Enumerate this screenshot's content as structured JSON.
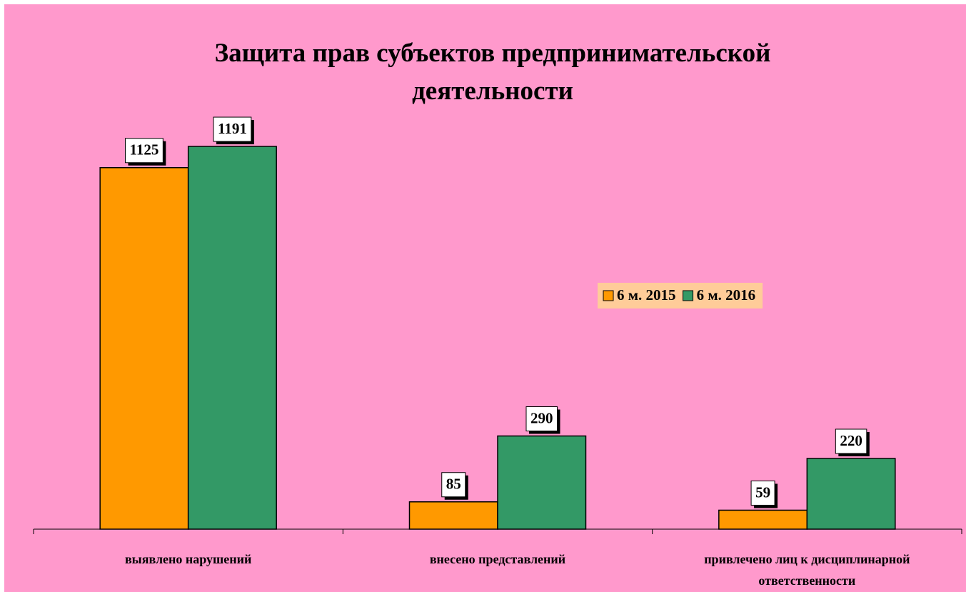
{
  "chart_data": {
    "type": "bar",
    "title": "Защита прав субъектов предпринимательской деятельности",
    "categories": [
      "выявлено нарушений",
      "внесено представлений",
      "привлечено лиц к дисциплинарной ответственности"
    ],
    "series": [
      {
        "name": "6 м. 2015",
        "color": "#ff9900",
        "values": [
          1125,
          85,
          59
        ]
      },
      {
        "name": "6 м. 2016",
        "color": "#339966",
        "values": [
          1191,
          290,
          220
        ]
      }
    ],
    "ylim": [
      0,
      1400
    ],
    "legend": "right"
  }
}
